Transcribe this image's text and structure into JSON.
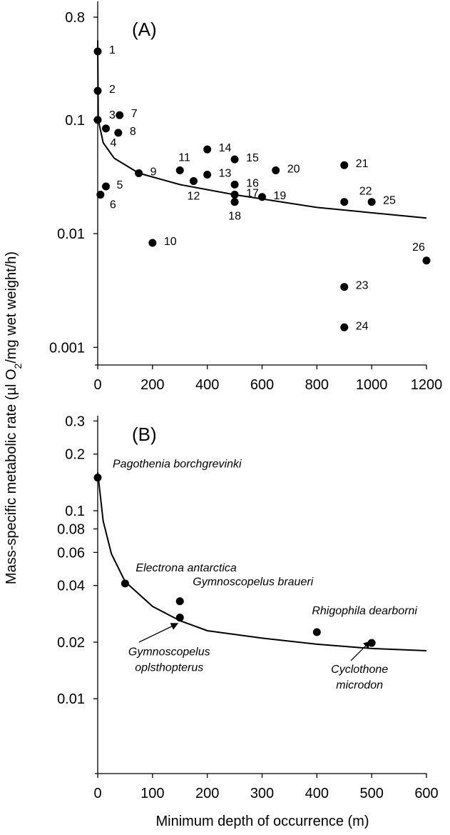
{
  "chart_data": [
    {
      "type": "scatter",
      "title": "(A)",
      "ylabel": [
        "Mass-specific metabolic rate (µl O",
        "2",
        "/mg wet weight/h)"
      ],
      "log_y": true,
      "color": "#000000",
      "xlim": [
        0,
        1200
      ],
      "xticks": [
        0,
        200,
        400,
        600,
        800,
        1000,
        1200
      ],
      "ylim": [
        0.0007,
        1.1
      ],
      "yticks": [
        0.8,
        0.1,
        0.01,
        0.001
      ],
      "points": {
        "x": [
          0,
          0,
          0,
          30,
          30,
          10,
          80,
          75,
          150,
          200,
          300,
          350,
          400,
          400,
          500,
          500,
          500,
          500,
          600,
          650,
          900,
          900,
          900,
          900,
          1000,
          1200
        ],
        "values": [
          0.4,
          0.18,
          0.1,
          0.084,
          0.026,
          0.022,
          0.11,
          0.077,
          0.034,
          0.0083,
          0.036,
          0.029,
          0.033,
          0.055,
          0.045,
          0.027,
          0.022,
          0.019,
          0.021,
          0.036,
          0.04,
          0.019,
          0.0034,
          0.0015,
          0.019,
          0.0058
        ],
        "labels": [
          "1",
          "2",
          "3",
          "4",
          "5",
          "6",
          "7",
          "8",
          "9",
          "10",
          "11",
          "12",
          "13",
          "14",
          "15",
          "16",
          "17",
          "18",
          "19",
          "20",
          "21",
          "22",
          "23",
          "24",
          "25",
          "26"
        ]
      },
      "curve": {
        "x": [
          0,
          2,
          20,
          60,
          150,
          300,
          500,
          800,
          1200
        ],
        "values": [
          0.5,
          0.1,
          0.063,
          0.046,
          0.034,
          0.027,
          0.022,
          0.017,
          0.0137
        ]
      }
    },
    {
      "type": "scatter",
      "title": "(B)",
      "xlabel": "Minimum depth of occurrence (m)",
      "log_y": true,
      "color": "#000000",
      "xlim": [
        0,
        600
      ],
      "xticks": [
        0,
        100,
        200,
        300,
        400,
        500,
        600
      ],
      "ylim": [
        0.004,
        0.32
      ],
      "yticks": [
        0.3,
        0.2,
        0.1,
        0.08,
        0.06,
        0.04,
        0.02,
        0.01
      ],
      "points": {
        "x": [
          0,
          50,
          150,
          150,
          400,
          500
        ],
        "values": [
          0.15,
          0.041,
          0.033,
          0.027,
          0.0226,
          0.0198
        ],
        "labels": [
          [
            "Pagothenia borchgrevinki"
          ],
          [
            "Electrona antarctica"
          ],
          [
            "Gymnoscopelus braueri"
          ],
          [
            "Gymnoscopelus",
            "oplsthopterus"
          ],
          [
            "Rhigophila dearborni"
          ],
          [
            "Cyclothone",
            "microdon"
          ]
        ]
      },
      "curve": {
        "x": [
          0,
          10,
          25,
          50,
          100,
          150,
          200,
          300,
          400,
          500,
          600
        ],
        "values": [
          0.16,
          0.088,
          0.059,
          0.042,
          0.031,
          0.026,
          0.023,
          0.021,
          0.0195,
          0.0185,
          0.018
        ]
      }
    }
  ]
}
